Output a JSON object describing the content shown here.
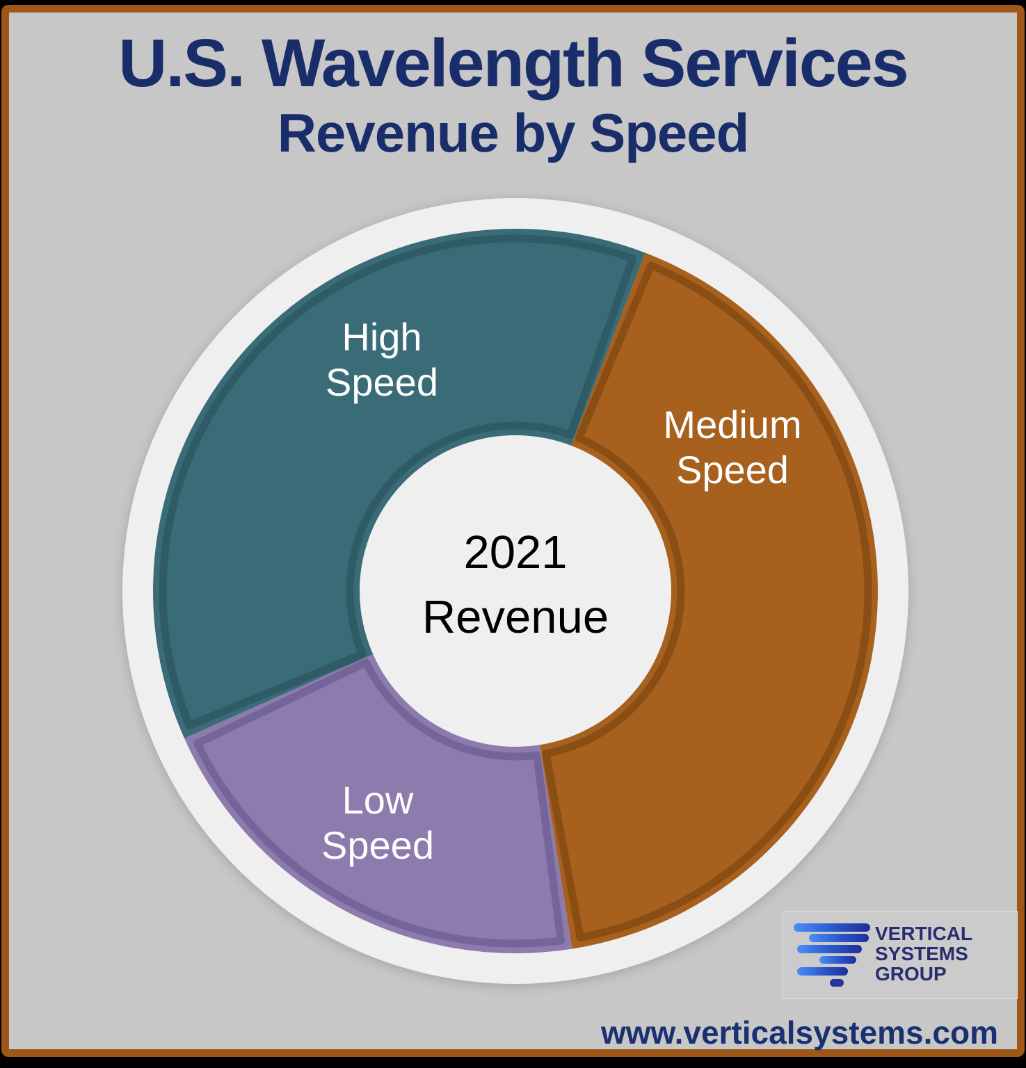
{
  "title": {
    "line1": "U.S. Wavelength Services",
    "line2": "Revenue by Speed",
    "color": "#1a2d6b"
  },
  "chart_data": {
    "type": "pie",
    "subtype": "donut",
    "title": "U.S. Wavelength Services Revenue by Speed",
    "center_label": {
      "line1": "2021",
      "line2": "Revenue"
    },
    "ring_color": "#efefef",
    "legend": "labels drawn on slices",
    "categories": [
      "High Speed",
      "Medium Speed",
      "Low Speed"
    ],
    "values": [
      37.5,
      41.7,
      20.8
    ],
    "segments": [
      {
        "label": "High Speed",
        "label_line1": "High",
        "label_line2": "Speed",
        "color": "#3a6c78",
        "edge_color": "#2f5b66",
        "start_angle_deg": 246,
        "end_angle_deg": 381,
        "percent_estimate": 37.5
      },
      {
        "label": "Medium Speed",
        "label_line1": "Medium",
        "label_line2": "Speed",
        "color": "#a7601d",
        "edge_color": "#8a4e15",
        "start_angle_deg": 21,
        "end_angle_deg": 171,
        "percent_estimate": 41.7
      },
      {
        "label": "Low Speed",
        "label_line1": "Low",
        "label_line2": "Speed",
        "color": "#8c7bac",
        "edge_color": "#75649a",
        "start_angle_deg": 171,
        "end_angle_deg": 246,
        "percent_estimate": 20.8
      }
    ]
  },
  "logo": {
    "line1": "VERTICAL",
    "line2": "SYSTEMS",
    "line3": "GROUP",
    "text_color": "#282e6d",
    "bar_gradient_left": "#4b8df8",
    "bar_gradient_right": "#1e2f9a"
  },
  "footer": {
    "url": "www.verticalsystems.com",
    "color": "#1a3070"
  },
  "palette": {
    "background_gray": "#c7c7c7",
    "frame_border_brown": "#9e5716",
    "outer_band_black": "#000000",
    "ring_white": "#efefef"
  }
}
